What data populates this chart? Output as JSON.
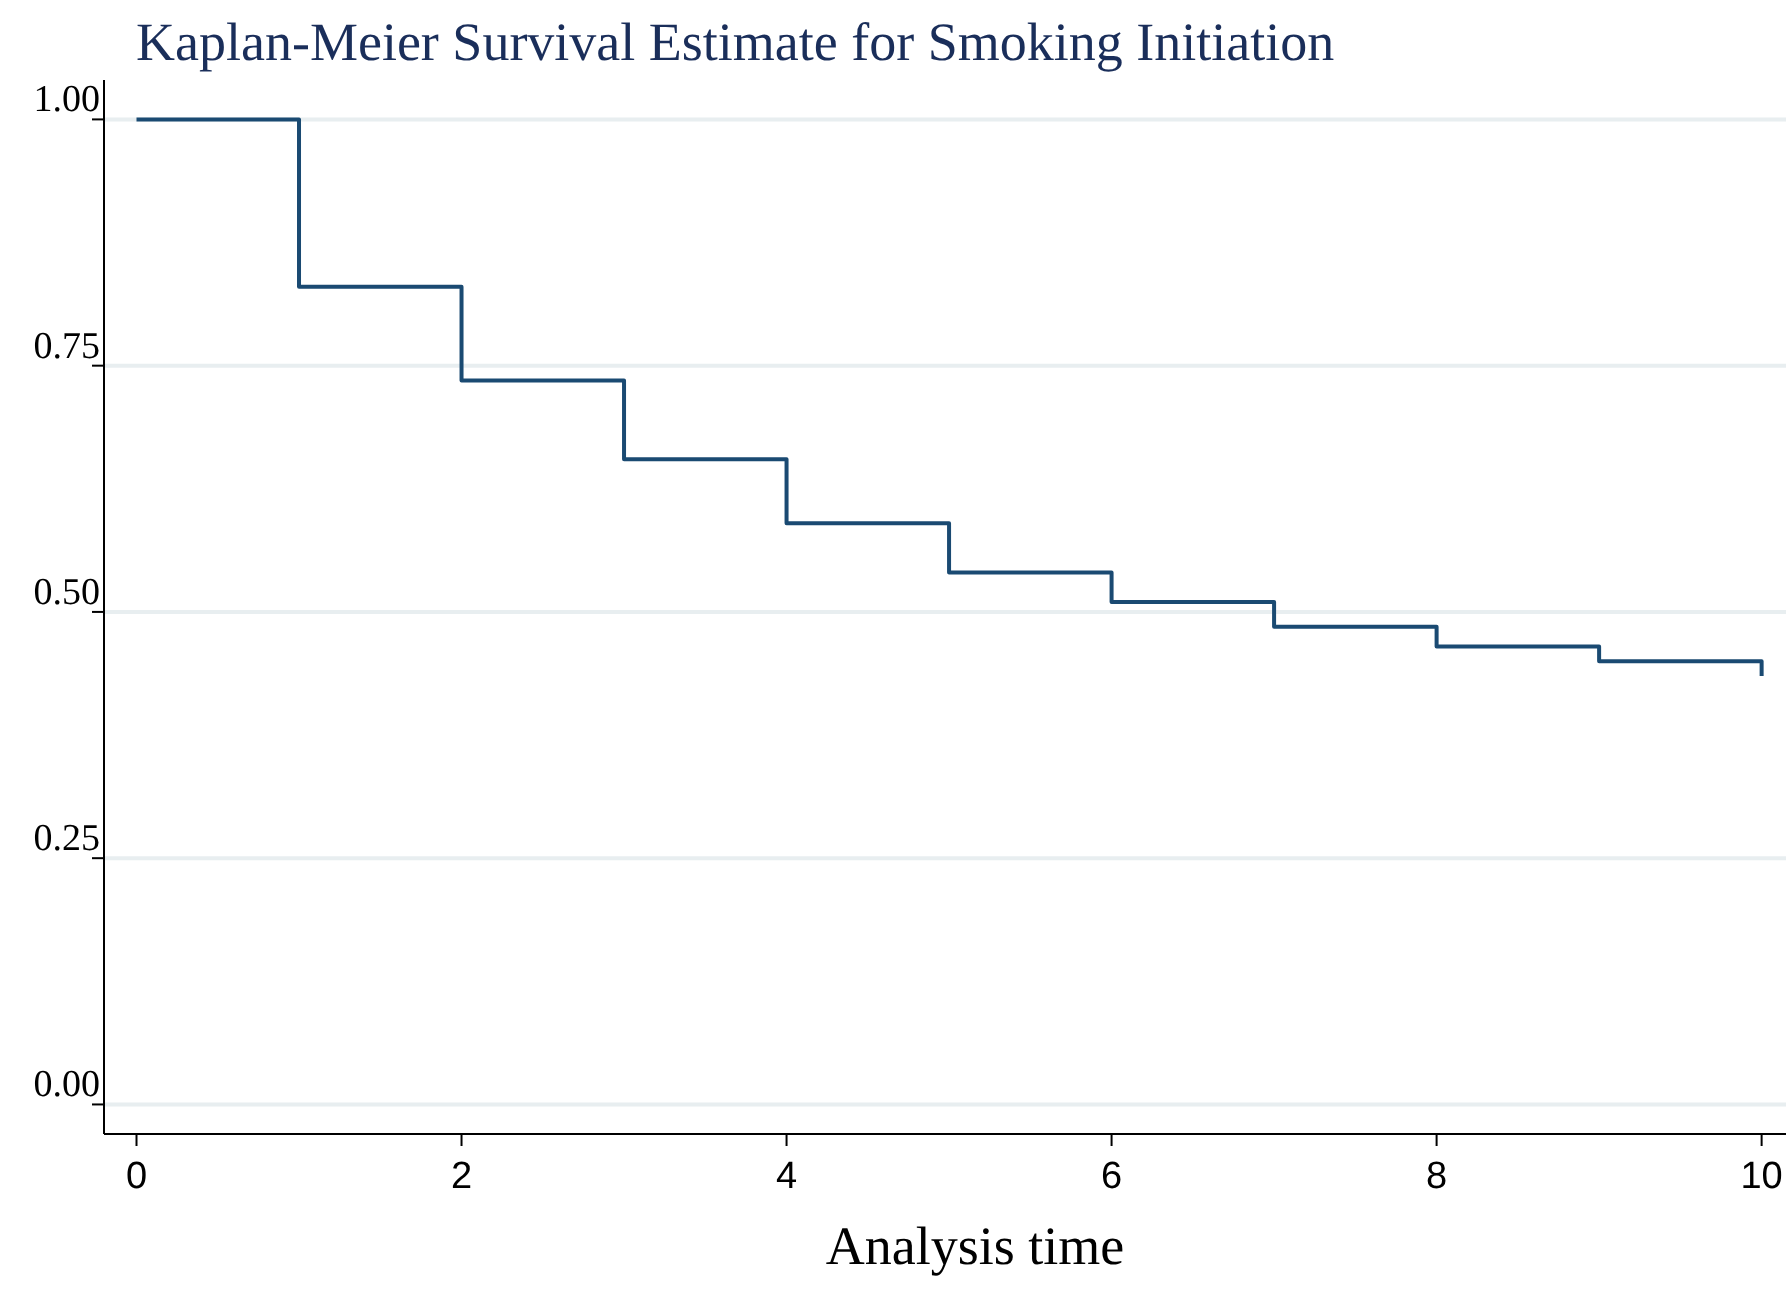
{
  "chart_data": {
    "type": "step",
    "title": "Kaplan-Meier Survival Estimate for Smoking Initiation",
    "xlabel": "Analysis time",
    "x": [
      0,
      1,
      2,
      3,
      4,
      5,
      6,
      7,
      8,
      9,
      10
    ],
    "series": [
      {
        "color": "#1a4a72",
        "values": [
          1,
          0.83,
          0.735,
          0.655,
          0.59,
          0.54,
          0.51,
          0.485,
          0.465,
          0.45,
          0.435
        ]
      }
    ],
    "xlim": [
      -0.2,
      10.15
    ],
    "xticks": [
      0,
      2,
      4,
      6,
      8,
      10
    ],
    "ylim": [
      -0.03,
      1.04
    ],
    "yticks": [
      {
        "value": 0,
        "label": "0.00"
      },
      {
        "value": 0.25,
        "label": "0.25"
      },
      {
        "value": 0.5,
        "label": "0.50"
      },
      {
        "value": 0.75,
        "label": "0.75"
      },
      {
        "value": 1,
        "label": "1.00"
      }
    ],
    "grid": "y"
  }
}
